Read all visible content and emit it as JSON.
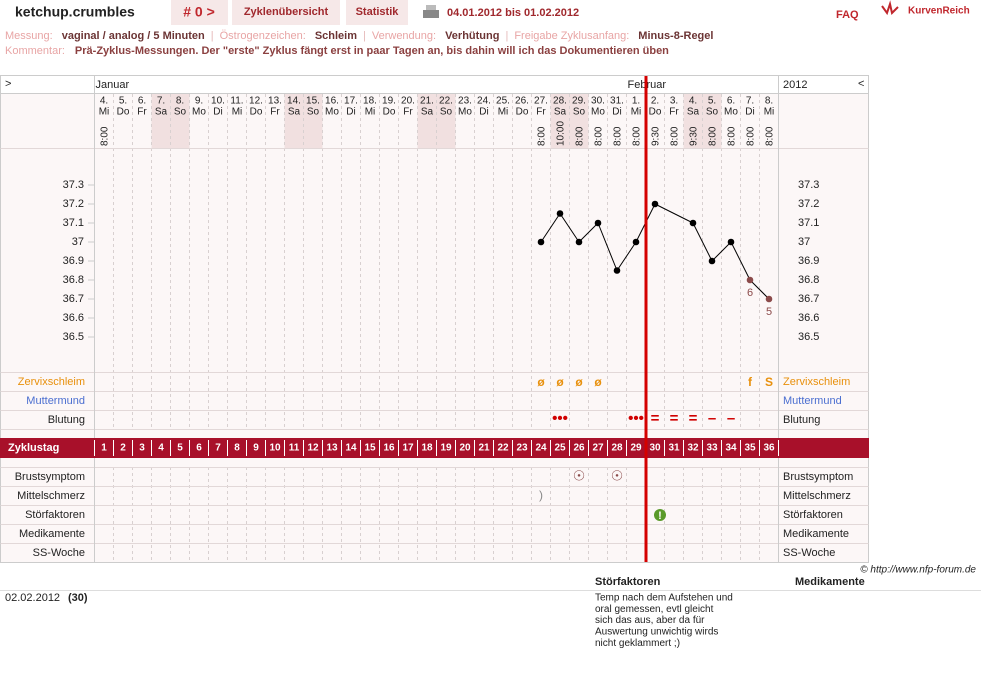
{
  "header": {
    "user": "ketchup.crumbles",
    "cycle_nav": "# 0 >",
    "tabs": [
      "Zyklenübersicht",
      "Statistik"
    ],
    "date_range": "04.01.2012 bis 01.02.2012",
    "faq": "FAQ",
    "logo": "KurvenReich"
  },
  "settings": {
    "items": [
      {
        "label": "Messung:",
        "value": "vaginal / analog / 5 Minuten"
      },
      {
        "label": "Östrogenzeichen:",
        "value": "Schleim"
      },
      {
        "label": "Verwendung:",
        "value": "Verhütung"
      },
      {
        "label": "Freigabe Zyklusanfang:",
        "value": "Minus-8-Regel"
      }
    ],
    "separator": "|",
    "comment_label": "Kommentar:",
    "comment": "Prä-Zyklus-Messungen. Der \"erste\" Zyklus fängt erst in paar Tagen an, bis dahin will ich das Dokumentieren üben"
  },
  "chart_data": {
    "type": "line",
    "nav_prev": ">",
    "nav_next": "<",
    "year": "2012",
    "months": [
      "Januar",
      "Februar"
    ],
    "dates": [
      "4.",
      "5.",
      "6.",
      "7.",
      "8.",
      "9.",
      "10.",
      "11.",
      "12.",
      "13.",
      "14.",
      "15.",
      "16.",
      "17.",
      "18.",
      "19.",
      "20.",
      "21.",
      "22.",
      "23.",
      "24.",
      "25.",
      "26.",
      "27.",
      "28.",
      "29.",
      "30.",
      "31.",
      "1.",
      "2.",
      "3.",
      "4.",
      "5.",
      "6.",
      "7.",
      "8."
    ],
    "weekdays": [
      "Mi",
      "Do",
      "Fr",
      "Sa",
      "So",
      "Mo",
      "Di",
      "Mi",
      "Do",
      "Fr",
      "Sa",
      "So",
      "Mo",
      "Di",
      "Mi",
      "Do",
      "Fr",
      "Sa",
      "So",
      "Mo",
      "Di",
      "Mi",
      "Do",
      "Fr",
      "Sa",
      "So",
      "Mo",
      "Di",
      "Mi",
      "Do",
      "Fr",
      "Sa",
      "So",
      "Mo",
      "Di",
      "Mi"
    ],
    "times": [
      "8:00",
      null,
      null,
      null,
      null,
      null,
      null,
      null,
      null,
      null,
      null,
      null,
      null,
      null,
      null,
      null,
      null,
      null,
      null,
      null,
      null,
      null,
      null,
      "8:00",
      "10:00",
      "8:00",
      "8:00",
      "8:00",
      "8:00",
      "9:30",
      "8:00",
      "9:30",
      "8:00",
      "8:00",
      "8:00",
      "8:00"
    ],
    "temperatures": [
      null,
      null,
      null,
      null,
      null,
      null,
      null,
      null,
      null,
      null,
      null,
      null,
      null,
      null,
      null,
      null,
      null,
      null,
      null,
      null,
      null,
      null,
      null,
      37.0,
      37.15,
      37.0,
      37.1,
      36.85,
      37.0,
      37.2,
      null,
      37.1,
      36.9,
      37.0,
      36.8,
      36.7
    ],
    "temp_labels": [
      null,
      null,
      null,
      null,
      null,
      null,
      null,
      null,
      null,
      null,
      null,
      null,
      null,
      null,
      null,
      null,
      null,
      null,
      null,
      null,
      null,
      null,
      null,
      null,
      null,
      null,
      null,
      null,
      null,
      null,
      null,
      null,
      null,
      null,
      "6",
      "5"
    ],
    "temperature_color": "#000000",
    "labelled_point_color": "#8b4a4a",
    "ylim": [
      36.32,
      37.5
    ],
    "yticks": [
      36.5,
      36.6,
      36.7,
      36.8,
      36.9,
      37,
      37.1,
      37.2,
      37.3
    ],
    "rows": {
      "cervical": "Zervixschleim",
      "cervix": "Muttermund",
      "bleeding": "Blutung",
      "cycle_day": "Zyklustag",
      "breast": "Brustsymptom",
      "mittelschmerz": "Mittelschmerz",
      "disturbance": "Störfaktoren",
      "medication": "Medikamente",
      "pregnancy_week": "SS-Woche"
    },
    "cervical": [
      null,
      null,
      null,
      null,
      null,
      null,
      null,
      null,
      null,
      null,
      null,
      null,
      null,
      null,
      null,
      null,
      null,
      null,
      null,
      null,
      null,
      null,
      null,
      "ø",
      "ø",
      "ø",
      "ø",
      null,
      null,
      null,
      null,
      null,
      null,
      null,
      "f",
      "S"
    ],
    "bleeding": [
      null,
      null,
      null,
      null,
      null,
      null,
      null,
      null,
      null,
      null,
      null,
      null,
      null,
      null,
      null,
      null,
      null,
      null,
      null,
      null,
      null,
      null,
      null,
      null,
      "•••",
      null,
      null,
      null,
      "•••",
      "=",
      "=",
      "=",
      "–",
      "–",
      null,
      null
    ],
    "cycle_days": [
      1,
      2,
      3,
      4,
      5,
      6,
      7,
      8,
      9,
      10,
      11,
      12,
      13,
      14,
      15,
      16,
      17,
      18,
      19,
      20,
      21,
      22,
      23,
      24,
      25,
      26,
      27,
      28,
      29,
      30,
      31,
      32,
      33,
      34,
      35,
      36
    ],
    "breast": [
      null,
      null,
      null,
      null,
      null,
      null,
      null,
      null,
      null,
      null,
      null,
      null,
      null,
      null,
      null,
      null,
      null,
      null,
      null,
      null,
      null,
      null,
      null,
      null,
      null,
      "☉",
      null,
      "☉",
      null,
      null,
      null,
      null,
      null,
      null,
      null,
      null
    ],
    "mittelschmerz": [
      null,
      null,
      null,
      null,
      null,
      null,
      null,
      null,
      null,
      null,
      null,
      null,
      null,
      null,
      null,
      null,
      null,
      null,
      null,
      null,
      null,
      null,
      null,
      ")",
      null,
      null,
      null,
      null,
      null,
      null,
      null,
      null,
      null,
      null,
      null,
      null
    ],
    "disturbance": [
      null,
      null,
      null,
      null,
      null,
      null,
      null,
      null,
      null,
      null,
      null,
      null,
      null,
      null,
      null,
      null,
      null,
      null,
      null,
      null,
      null,
      null,
      null,
      null,
      null,
      null,
      null,
      null,
      null,
      "!",
      null,
      null,
      null,
      null,
      null,
      null
    ]
  },
  "footer": {
    "copyright": "© http://www.nfp-forum.de",
    "columns": [
      "Störfaktoren",
      "Medikamente"
    ],
    "entry": {
      "date": "02.02.2012",
      "cycle_day": "(30)",
      "disturbance": [
        "Temp nach dem Aufstehen und",
        "oral gemessen, evtl gleicht",
        "sich das aus, aber da für",
        "Auswertung unwichtig wirds",
        "nicht geklammert ;)"
      ]
    }
  }
}
